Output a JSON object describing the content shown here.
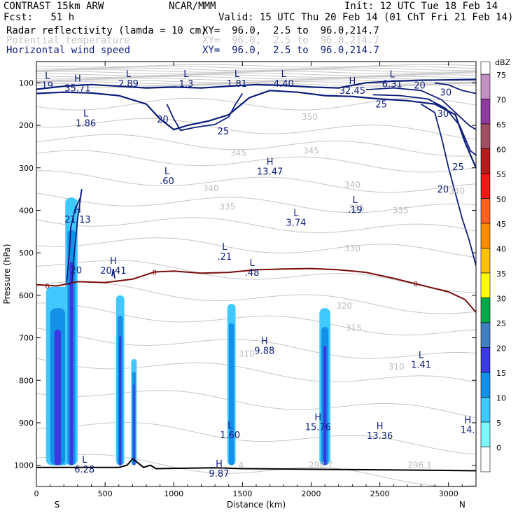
{
  "header": {
    "model": "CONTRAST 15km ARW",
    "source": "NCAR/MMM",
    "init": "Init: 12 UTC Tue 18 Feb 14",
    "fcst": "Fcst:   51 h",
    "valid": "Valid: 15 UTC Thu 20 Feb 14 (01 ChT Fri 21 Feb 14)",
    "fields": [
      {
        "name": "Radar reflectivity (lamda = 10 cm)",
        "xy": "XY=  96.0,  2.5 to  96.0,214.7",
        "color": "#000000"
      },
      {
        "name": "Potential temperature",
        "xy": "XY=  96.0,  2.5 to  96.0,214.7",
        "color": "#c8c8c8"
      },
      {
        "name": "Horizontal wind speed",
        "xy": "XY=  96.0,  2.5 to  96.0,214.7",
        "color": "#0c1d7a"
      }
    ]
  },
  "chart_data": {
    "type": "cross-section",
    "xlabel": "Distance (km)",
    "ylabel": "Pressure (hPa)",
    "xlim": [
      0,
      3200
    ],
    "ylim": [
      1050,
      50
    ],
    "xticks": [
      "0",
      "500",
      "1000",
      "1500",
      "2000",
      "2500",
      "3000"
    ],
    "yticks": [
      "100",
      "200",
      "300",
      "400",
      "500",
      "600",
      "700",
      "800",
      "900",
      "1000"
    ],
    "ends": {
      "left": "S",
      "right": "N"
    },
    "colorbar": {
      "unit": "dBZ",
      "levels": [
        "75",
        "70",
        "65",
        "60",
        "55",
        "50",
        "45",
        "40",
        "35",
        "30",
        "25",
        "20",
        "15",
        "10",
        "5",
        "0"
      ],
      "colors": [
        "#c390c4",
        "#8e3c9c",
        "#a24e62",
        "#b31c1c",
        "#f01717",
        "#ff6020",
        "#ff8c00",
        "#ffc000",
        "#ffff00",
        "#00a84a",
        "#3f80c0",
        "#3a3ae0",
        "#1590e8",
        "#40c8ff",
        "#7ef8ff",
        "#ffffff"
      ]
    },
    "theta_labels": [
      {
        "v": "350",
        "x": 1990,
        "p": 180
      },
      {
        "v": "345",
        "x": 1470,
        "p": 265
      },
      {
        "v": "345",
        "x": 2000,
        "p": 260
      },
      {
        "v": "340",
        "x": 1270,
        "p": 348
      },
      {
        "v": "340",
        "x": 2300,
        "p": 340
      },
      {
        "v": "340",
        "x": 3060,
        "p": 355
      },
      {
        "v": "335",
        "x": 1390,
        "p": 392
      },
      {
        "v": "335",
        "x": 2330,
        "p": 395
      },
      {
        "v": "335",
        "x": 2650,
        "p": 400
      },
      {
        "v": "330",
        "x": 2300,
        "p": 490
      },
      {
        "v": "320",
        "x": 2240,
        "p": 625
      },
      {
        "v": "315",
        "x": 2310,
        "p": 677
      },
      {
        "v": "310",
        "x": 1530,
        "p": 738
      },
      {
        "v": "310",
        "x": 2620,
        "p": 768
      },
      {
        "v": "298.7",
        "x": 2070,
        "p": 1000
      },
      {
        "v": "296.1",
        "x": 2790,
        "p": 1000
      },
      {
        "v": "4",
        "x": 1490,
        "p": 1000
      }
    ],
    "wind_labels": [
      {
        "v": "20",
        "x": 920,
        "p": 185
      },
      {
        "v": "25",
        "x": 1360,
        "p": 213
      },
      {
        "v": "25",
        "x": 2510,
        "p": 150
      },
      {
        "v": "20",
        "x": 2790,
        "p": 105
      },
      {
        "v": "30",
        "x": 2980,
        "p": 122
      },
      {
        "v": "30",
        "x": 2960,
        "p": 172
      },
      {
        "v": "25",
        "x": 3070,
        "p": 297
      },
      {
        "v": "20",
        "x": 2960,
        "p": 350
      },
      {
        "v": "20",
        "x": 290,
        "p": 540
      }
    ],
    "zero_labels": [
      {
        "v": "0",
        "x": 80,
        "p": 578
      },
      {
        "v": "0",
        "x": 860,
        "p": 545
      },
      {
        "v": "0",
        "x": 2760,
        "p": 572
      }
    ],
    "extrema": [
      {
        "t": "L",
        "v": "19",
        "x": 80,
        "p": 90
      },
      {
        "t": "H",
        "v": "35.71",
        "x": 300,
        "p": 97
      },
      {
        "t": "L",
        "v": "2.89",
        "x": 670,
        "p": 86
      },
      {
        "t": "L",
        "v": "1.3",
        "x": 1090,
        "p": 86
      },
      {
        "t": "L",
        "v": "1.81",
        "x": 1460,
        "p": 86
      },
      {
        "t": "L",
        "v": "4.40",
        "x": 1800,
        "p": 86
      },
      {
        "t": "H",
        "v": "32.45",
        "x": 2300,
        "p": 103
      },
      {
        "t": "L",
        "v": "6.31",
        "x": 2590,
        "p": 87
      },
      {
        "t": "L",
        "v": "1.86",
        "x": 360,
        "p": 179
      },
      {
        "t": "L",
        "v": ".60",
        "x": 950,
        "p": 315
      },
      {
        "t": "H",
        "v": "13.47",
        "x": 1700,
        "p": 293
      },
      {
        "t": "L",
        "v": ".19",
        "x": 2320,
        "p": 383
      },
      {
        "t": "H",
        "v": "21.13",
        "x": 300,
        "p": 406
      },
      {
        "t": "L",
        "v": "3.74",
        "x": 1890,
        "p": 413
      },
      {
        "t": "L",
        "v": ".21",
        "x": 1370,
        "p": 493
      },
      {
        "t": "H",
        "v": "20.41",
        "x": 560,
        "p": 526
      },
      {
        "t": "L",
        "v": ".48",
        "x": 1570,
        "p": 531
      },
      {
        "t": "H",
        "v": "9.88",
        "x": 1660,
        "p": 715
      },
      {
        "t": "L",
        "v": "1.41",
        "x": 2800,
        "p": 748
      },
      {
        "t": "L",
        "v": "1.60",
        "x": 1410,
        "p": 913
      },
      {
        "t": "H",
        "v": "15.76",
        "x": 2050,
        "p": 894
      },
      {
        "t": "H",
        "v": "13.36",
        "x": 2500,
        "p": 915
      },
      {
        "t": "H",
        "v": "14.",
        "x": 3140,
        "p": 901
      },
      {
        "t": "L",
        "v": "6.28",
        "x": 350,
        "p": 994
      },
      {
        "t": "H",
        "v": "9.87",
        "x": 1330,
        "p": 1004
      }
    ],
    "reflectivity_cells": [
      {
        "x0": 70,
        "x1": 240,
        "top": 580,
        "bottom": 1000,
        "max": "20"
      },
      {
        "x0": 210,
        "x1": 300,
        "top": 370,
        "bottom": 1000,
        "max": "20"
      },
      {
        "x0": 580,
        "x1": 640,
        "top": 600,
        "bottom": 1000,
        "max": "20"
      },
      {
        "x0": 690,
        "x1": 730,
        "top": 750,
        "bottom": 1000,
        "max": "20"
      },
      {
        "x0": 1390,
        "x1": 1450,
        "top": 620,
        "bottom": 1000,
        "max": "15"
      },
      {
        "x0": 2060,
        "x1": 2140,
        "top": 630,
        "bottom": 1000,
        "max": "20"
      }
    ],
    "terrain": [
      [
        0,
        1005
      ],
      [
        600,
        1005
      ],
      [
        660,
        1000
      ],
      [
        700,
        985
      ],
      [
        730,
        992
      ],
      [
        780,
        1005
      ],
      [
        830,
        1000
      ],
      [
        870,
        1008
      ],
      [
        1300,
        1006
      ],
      [
        1500,
        1008
      ],
      [
        2200,
        1010
      ],
      [
        2900,
        1012
      ],
      [
        3200,
        1013
      ]
    ]
  }
}
